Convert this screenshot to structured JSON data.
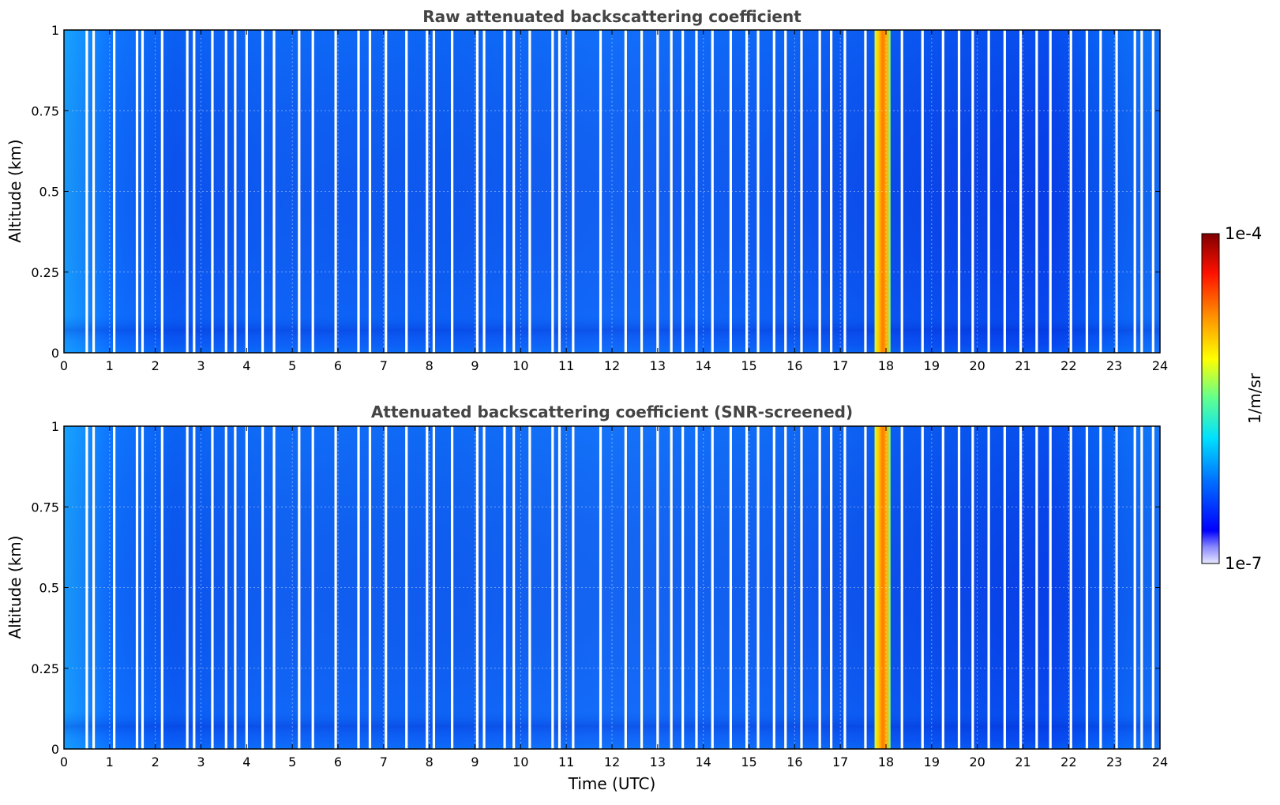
{
  "chart_data": [
    {
      "type": "heatmap",
      "title": "Raw attenuated backscattering coefficient",
      "xlabel": "",
      "ylabel": "Altitude (km)",
      "xlim": [
        0,
        24
      ],
      "ylim": [
        0,
        1
      ],
      "x_ticks": [
        "0",
        "1",
        "2",
        "3",
        "4",
        "5",
        "6",
        "7",
        "8",
        "9",
        "10",
        "11",
        "12",
        "13",
        "14",
        "15",
        "16",
        "17",
        "18",
        "19",
        "20",
        "21",
        "22",
        "23",
        "24"
      ],
      "y_ticks": [
        "0",
        "0.25",
        "0.5",
        "0.75",
        "1"
      ],
      "grid": true,
      "high_value_band_utc": [
        17.75,
        18.1
      ],
      "data_gaps_utc": [
        0.5,
        0.65,
        1.1,
        1.6,
        1.72,
        2.15,
        2.7,
        2.85,
        3.25,
        3.55,
        3.75,
        4.0,
        4.35,
        4.6,
        5.15,
        5.45,
        5.95,
        6.45,
        6.7,
        7.05,
        7.5,
        7.95,
        8.1,
        8.5,
        9.05,
        9.2,
        9.65,
        9.85,
        10.2,
        10.7,
        10.85,
        11.15,
        11.75,
        12.3,
        12.65,
        13.0,
        13.3,
        13.55,
        13.85,
        14.2,
        14.6,
        14.95,
        15.2,
        15.55,
        15.8,
        16.15,
        16.55,
        16.8,
        17.1,
        17.55,
        18.35,
        18.8,
        19.25,
        19.6,
        19.9,
        20.25,
        20.6,
        20.95,
        21.3,
        21.6,
        22.05,
        22.4,
        22.7,
        23.05,
        23.45,
        23.6,
        23.85
      ]
    },
    {
      "type": "heatmap",
      "title": "Attenuated backscattering coefficient (SNR-screened)",
      "xlabel": "Time (UTC)",
      "ylabel": "Altitude (km)",
      "xlim": [
        0,
        24
      ],
      "ylim": [
        0,
        1
      ],
      "x_ticks": [
        "0",
        "1",
        "2",
        "3",
        "4",
        "5",
        "6",
        "7",
        "8",
        "9",
        "10",
        "11",
        "12",
        "13",
        "14",
        "15",
        "16",
        "17",
        "18",
        "19",
        "20",
        "21",
        "22",
        "23",
        "24"
      ],
      "y_ticks": [
        "0",
        "0.25",
        "0.5",
        "0.75",
        "1"
      ],
      "grid": true,
      "high_value_band_utc": [
        17.75,
        18.1
      ],
      "data_gaps_utc": [
        0.5,
        0.65,
        1.1,
        1.6,
        1.72,
        2.15,
        2.7,
        2.85,
        3.25,
        3.55,
        3.75,
        4.0,
        4.35,
        4.6,
        5.15,
        5.45,
        5.95,
        6.45,
        6.7,
        7.05,
        7.5,
        7.95,
        8.1,
        8.5,
        9.05,
        9.2,
        9.65,
        9.85,
        10.2,
        10.7,
        10.85,
        11.15,
        11.75,
        12.3,
        12.65,
        13.0,
        13.3,
        13.55,
        13.85,
        14.2,
        14.6,
        14.95,
        15.2,
        15.55,
        15.8,
        16.15,
        16.55,
        16.8,
        17.1,
        17.55,
        18.35,
        18.8,
        19.25,
        19.6,
        19.9,
        20.25,
        20.6,
        20.95,
        21.3,
        21.6,
        22.05,
        22.4,
        22.7,
        23.05,
        23.45,
        23.6,
        23.85
      ]
    }
  ],
  "colorbar": {
    "label": "1/m/sr",
    "max_label": "1e-4",
    "min_label": "1e-7",
    "colormap": [
      "#e8e8ff",
      "#0000ff",
      "#0080ff",
      "#00e5ff",
      "#80ff80",
      "#ffff00",
      "#ff8000",
      "#ff0000",
      "#800000"
    ]
  }
}
